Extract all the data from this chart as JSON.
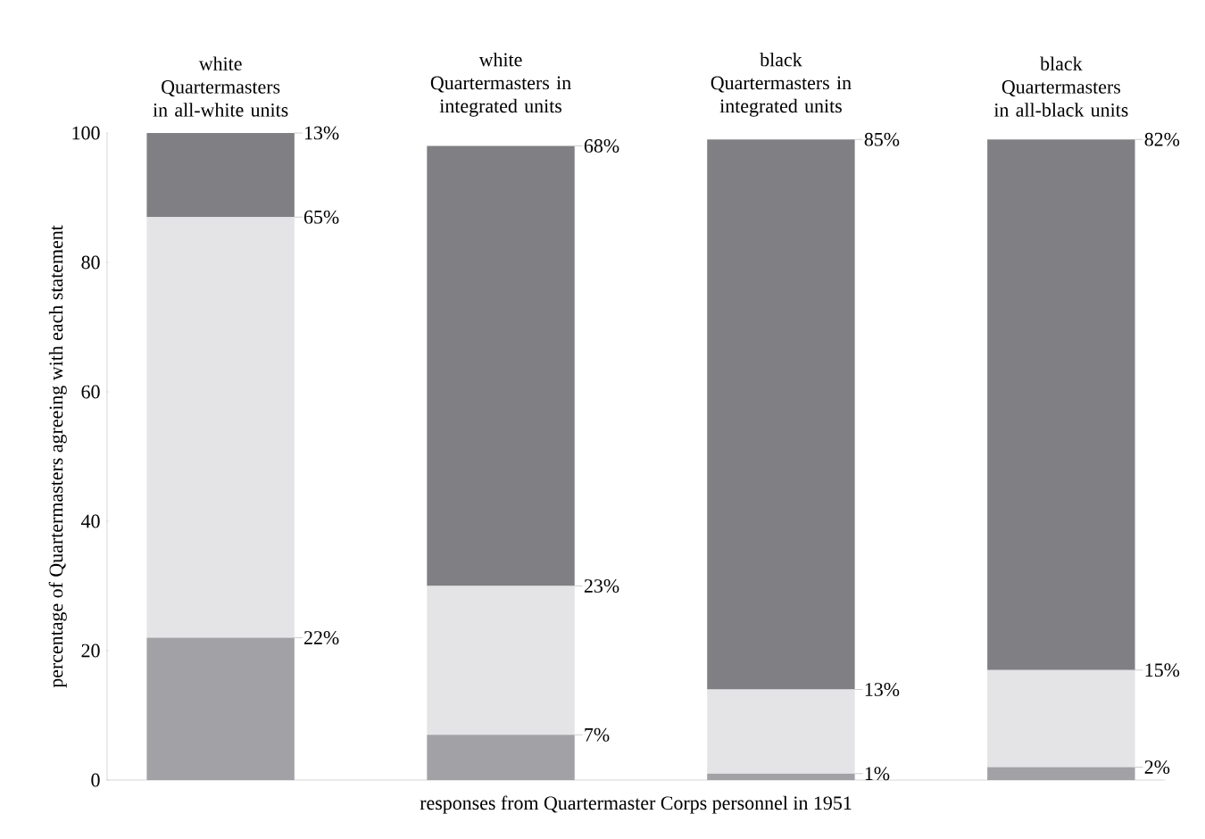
{
  "chart_data": {
    "type": "bar",
    "stacked": true,
    "xlabel": "responses from Quartermaster Corps personnel in 1951",
    "ylabel": "percentage of Quartermasters agreeing with each statement",
    "categories": [
      "white Quartermasters in all-white units",
      "white Quartermasters in integrated units",
      "black Quartermasters in integrated units",
      "black Quartermasters in all-black units"
    ],
    "series": [
      {
        "color": "#a2a2a6",
        "values": [
          22,
          7,
          1,
          2
        ],
        "value_labels": [
          "22%",
          "7%",
          "1%",
          "2%"
        ]
      },
      {
        "color": "#e4e4e6",
        "values": [
          65,
          23,
          13,
          15
        ],
        "value_labels": [
          "65%",
          "23%",
          "13%",
          "15%"
        ]
      },
      {
        "color": "#808084",
        "values": [
          13,
          68,
          85,
          82
        ],
        "value_labels": [
          "13%",
          "68%",
          "85%",
          "82%"
        ]
      }
    ],
    "ylim": [
      0,
      100
    ],
    "yticks": [
      0,
      20,
      40,
      60,
      80,
      100
    ],
    "grid": false
  }
}
